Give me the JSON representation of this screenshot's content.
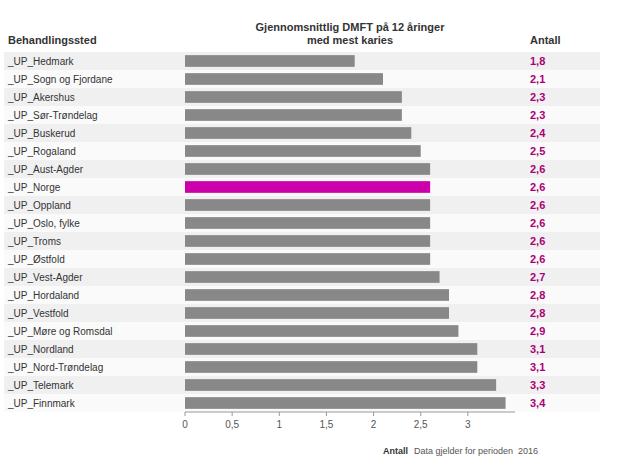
{
  "chart_data": {
    "type": "bar",
    "orientation": "horizontal",
    "title": "Gjennomsnittlig DMFT på 12 åringer\nmed mest karies",
    "y_label": "Behandlingssted",
    "categories": [
      "_UP_Hedmark",
      "_UP_Sogn og Fjordane",
      "_UP_Akershus",
      "_UP_Sør-Trøndelag",
      "_UP_Buskerud",
      "_UP_Rogaland",
      "_UP_Aust-Agder",
      "_UP_Norge",
      "_UP_Oppland",
      "_UP_Oslo, fylke",
      "_UP_Troms",
      "_UP_Østfold",
      "_UP_Vest-Agder",
      "_UP_Hordaland",
      "_UP_Vestfold",
      "_UP_Møre og Romsdal",
      "_UP_Nordland",
      "_UP_Nord-Trøndelag",
      "_UP_Telemark",
      "_UP_Finnmark"
    ],
    "values": [
      1.8,
      2.1,
      2.3,
      2.3,
      2.4,
      2.5,
      2.6,
      2.6,
      2.6,
      2.6,
      2.6,
      2.6,
      2.7,
      2.8,
      2.8,
      2.9,
      3.1,
      3.1,
      3.3,
      3.4
    ],
    "colors": [
      "#888888",
      "#888888",
      "#888888",
      "#888888",
      "#888888",
      "#888888",
      "#888888",
      "#cc00aa",
      "#888888",
      "#888888",
      "#888888",
      "#888888",
      "#888888",
      "#888888",
      "#888888",
      "#888888",
      "#888888",
      "#888888",
      "#888888",
      "#888888"
    ],
    "data_labels": true,
    "value_labels": [
      "1,8",
      "2,1",
      "2,3",
      "2,3",
      "2,4",
      "2,5",
      "2,6",
      "2,6",
      "2,6",
      "2,6",
      "2,6",
      "2,6",
      "2,7",
      "2,8",
      "2,8",
      "2,9",
      "3,1",
      "3,1",
      "3,3",
      "3,4"
    ],
    "annotations": [
      "Antall",
      "Antall",
      "Data gjelder for perioden  2016"
    ],
    "xlim": [
      0,
      3.5
    ],
    "xticks": [
      0,
      {
        "value": 0.5,
        "label": "0,5"
      },
      1,
      {
        "value": 1.5,
        "label": "1,5"
      },
      2,
      {
        "value": 2.5,
        "label": "2,5"
      },
      3
    ],
    "grid": false
  }
}
